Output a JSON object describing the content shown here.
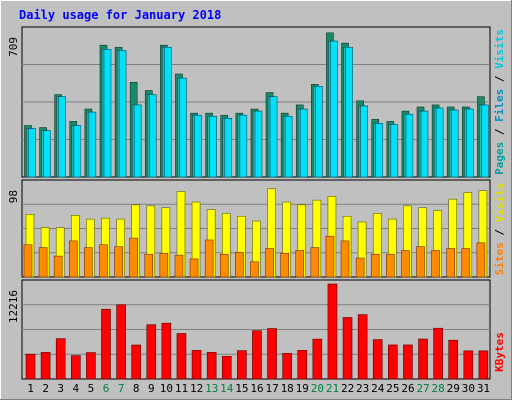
{
  "chart_data": [
    {
      "type": "bar",
      "title": "Daily usage for January 2018",
      "categories": [
        "1",
        "2",
        "3",
        "4",
        "5",
        "6",
        "7",
        "8",
        "9",
        "10",
        "11",
        "12",
        "13",
        "14",
        "15",
        "16",
        "17",
        "18",
        "19",
        "20",
        "21",
        "22",
        "23",
        "24",
        "25",
        "26",
        "27",
        "28",
        "29",
        "30",
        "31"
      ],
      "weekend_days": [
        "6",
        "7",
        "13",
        "14",
        "20",
        "21",
        "27",
        "28"
      ],
      "ylim": [
        0,
        709
      ],
      "max_label": "709",
      "grid": true,
      "series": [
        {
          "name": "Pages",
          "color": "#00A0A0",
          "values": [
            250,
            240,
            400,
            270,
            330,
            640,
            630,
            460,
            420,
            640,
            500,
            310,
            310,
            300,
            310,
            330,
            410,
            310,
            350,
            450,
            700,
            650,
            370,
            280,
            270,
            320,
            340,
            350,
            340,
            340,
            390
          ]
        },
        {
          "name": "Files",
          "color": "#0090C0",
          "values": [
            235,
            225,
            390,
            250,
            315,
            620,
            615,
            350,
            400,
            630,
            480,
            300,
            295,
            285,
            300,
            320,
            390,
            295,
            330,
            440,
            660,
            630,
            345,
            260,
            255,
            305,
            320,
            335,
            325,
            330,
            350
          ]
        },
        {
          "name": "Visits",
          "color": "#00E8F8",
          "values": [
            235,
            225,
            390,
            250,
            315,
            620,
            615,
            350,
            400,
            630,
            480,
            300,
            295,
            285,
            300,
            320,
            390,
            295,
            330,
            440,
            660,
            630,
            345,
            260,
            255,
            305,
            320,
            335,
            325,
            330,
            350
          ]
        }
      ]
    },
    {
      "type": "bar",
      "categories": [
        "1",
        "2",
        "3",
        "4",
        "5",
        "6",
        "7",
        "8",
        "9",
        "10",
        "11",
        "12",
        "13",
        "14",
        "15",
        "16",
        "17",
        "18",
        "19",
        "20",
        "21",
        "22",
        "23",
        "24",
        "25",
        "26",
        "27",
        "28",
        "29",
        "30",
        "31"
      ],
      "ylim": [
        0,
        98
      ],
      "max_label": "98",
      "grid": true,
      "series": [
        {
          "name": "Sites",
          "color": "#FF8000",
          "values": [
            34,
            31,
            22,
            38,
            31,
            34,
            32,
            41,
            24,
            25,
            23,
            19,
            39,
            24,
            26,
            16,
            30,
            25,
            28,
            31,
            43,
            38,
            20,
            24,
            24,
            28,
            32,
            28,
            30,
            30,
            36
          ]
        },
        {
          "name": "Visits",
          "color": "#FFFF00",
          "values": [
            66,
            52,
            52,
            65,
            61,
            62,
            61,
            76,
            75,
            73,
            90,
            79,
            71,
            67,
            64,
            59,
            93,
            79,
            76,
            81,
            85,
            64,
            58,
            67,
            61,
            75,
            73,
            70,
            82,
            89,
            91
          ]
        }
      ]
    },
    {
      "type": "bar",
      "categories": [
        "1",
        "2",
        "3",
        "4",
        "5",
        "6",
        "7",
        "8",
        "9",
        "10",
        "11",
        "12",
        "13",
        "14",
        "15",
        "16",
        "17",
        "18",
        "19",
        "20",
        "21",
        "22",
        "23",
        "24",
        "25",
        "26",
        "27",
        "28",
        "29",
        "30",
        "31"
      ],
      "ylim": [
        0,
        12216
      ],
      "max_label": "12216",
      "grid": true,
      "series": [
        {
          "name": "KBytes",
          "color": "#FF0000",
          "values": [
            3190,
            3420,
            5190,
            3010,
            3400,
            8970,
            9550,
            4370,
            6980,
            7180,
            5850,
            3680,
            3430,
            2920,
            3650,
            6210,
            6490,
            3300,
            3690,
            5130,
            12216,
            7910,
            8280,
            5070,
            4380,
            4380,
            5140,
            6530,
            4990,
            3620,
            3620
          ]
        }
      ]
    }
  ]
}
